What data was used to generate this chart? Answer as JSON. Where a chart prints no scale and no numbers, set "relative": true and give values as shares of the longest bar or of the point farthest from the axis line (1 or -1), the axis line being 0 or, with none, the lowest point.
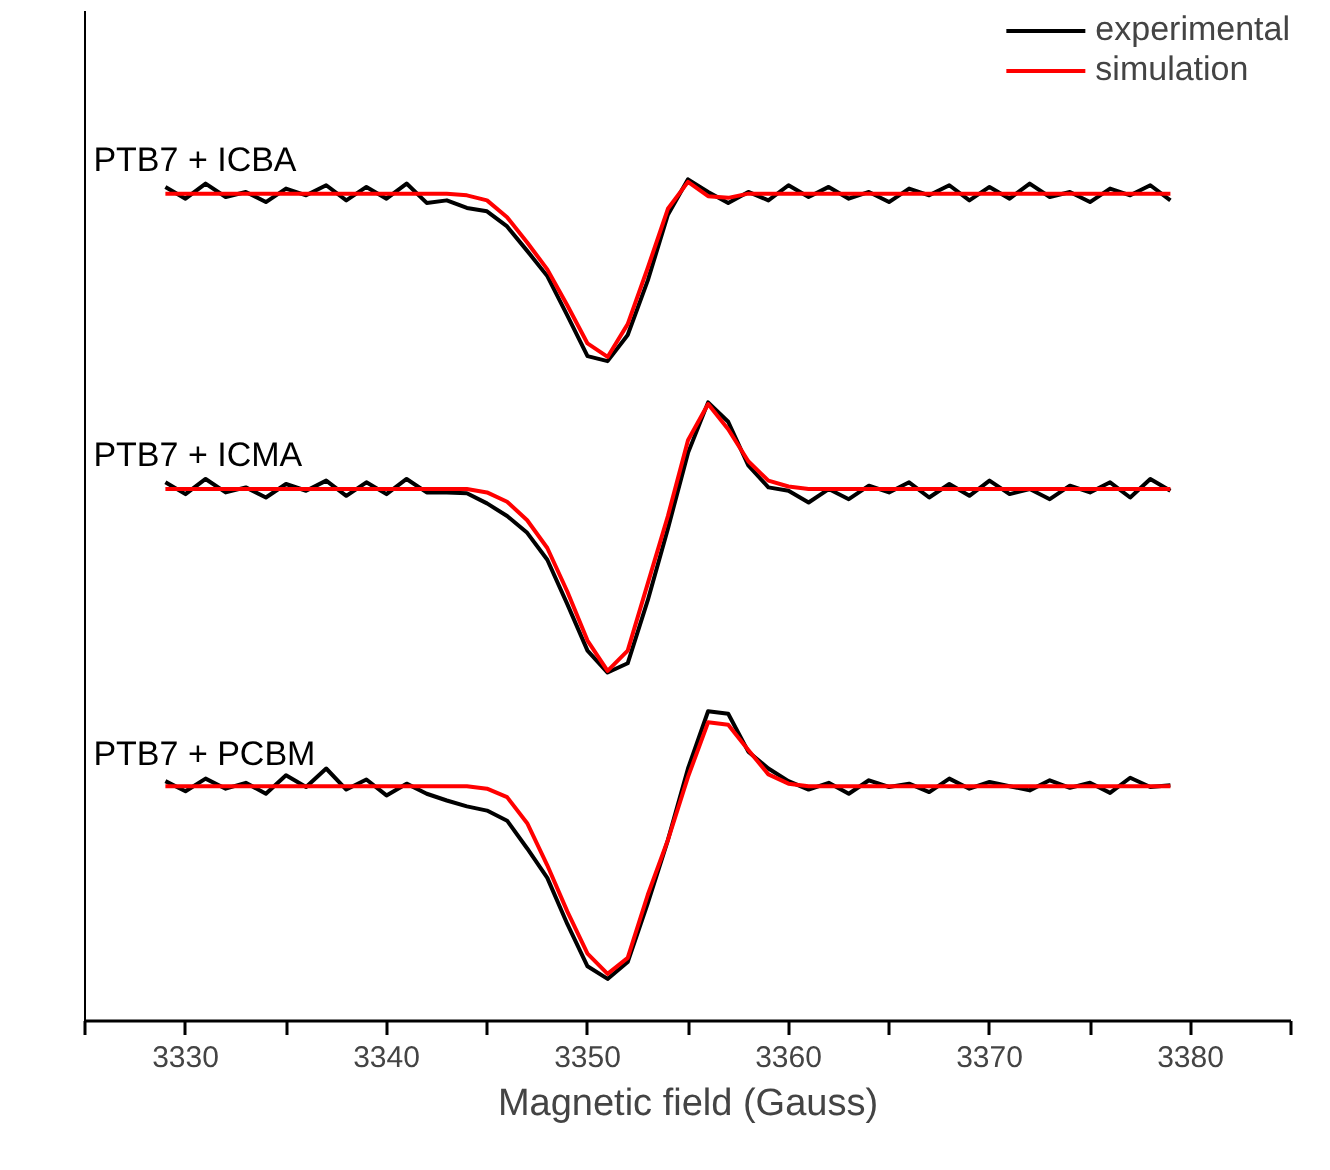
{
  "chart_data": {
    "type": "line",
    "relative": true,
    "xlabel": "Magnetic field (Gauss)",
    "xlim": [
      3325,
      3385
    ],
    "xticks": [
      {
        "value": 3325,
        "label": null
      },
      3330,
      {
        "value": 3335,
        "label": null
      },
      3340,
      {
        "value": 3345,
        "label": null
      },
      3350,
      {
        "value": 3355,
        "label": null
      },
      3360,
      {
        "value": 3365,
        "label": null
      },
      3370,
      {
        "value": 3375,
        "label": null
      },
      3380,
      {
        "value": 3385,
        "label": null
      }
    ],
    "grid": false,
    "legend": "top right",
    "line_style": "solid",
    "marker": "none",
    "x": [
      3329,
      3330,
      3331,
      3332,
      3333,
      3334,
      3335,
      3336,
      3337,
      3338,
      3339,
      3340,
      3341,
      3342,
      3343,
      3344,
      3345,
      3346,
      3347,
      3348,
      3349,
      3350,
      3351,
      3352,
      3353,
      3354,
      3355,
      3356,
      3357,
      3358,
      3359,
      3360,
      3361,
      3362,
      3363,
      3364,
      3365,
      3366,
      3367,
      3368,
      3369,
      3370,
      3371,
      3372,
      3373,
      3374,
      3375,
      3376,
      3377,
      3378,
      3379
    ],
    "series": [
      {
        "name": "experimental",
        "color": "#000000",
        "values": [
          0.991,
          0.977,
          0.995,
          0.979,
          0.985,
          0.973,
          0.989,
          0.981,
          0.993,
          0.975,
          0.991,
          0.977,
          0.995,
          0.972,
          0.975,
          0.966,
          0.962,
          0.944,
          0.915,
          0.885,
          0.838,
          0.79,
          0.784,
          0.815,
          0.88,
          0.958,
          1.0,
          0.985,
          0.972,
          0.985,
          0.975,
          0.993,
          0.979,
          0.991,
          0.977,
          0.985,
          0.973,
          0.989,
          0.981,
          0.993,
          0.975,
          0.991,
          0.977,
          0.995,
          0.979,
          0.985,
          0.973,
          0.989,
          0.981,
          0.993,
          0.975
        ]
      },
      {
        "name": "simulation",
        "color": "#ff0000",
        "values": [
          0.983,
          0.983,
          0.983,
          0.983,
          0.983,
          0.983,
          0.983,
          0.983,
          0.983,
          0.983,
          0.983,
          0.983,
          0.983,
          0.983,
          0.983,
          0.981,
          0.975,
          0.955,
          0.925,
          0.893,
          0.85,
          0.805,
          0.789,
          0.828,
          0.895,
          0.965,
          0.997,
          0.98,
          0.978,
          0.983,
          0.983,
          0.983,
          0.983,
          0.983,
          0.983,
          0.983,
          0.983,
          0.983,
          0.983,
          0.983,
          0.983,
          0.983,
          0.983,
          0.983,
          0.983,
          0.983,
          0.983,
          0.983,
          0.983,
          0.983,
          0.983
        ]
      },
      {
        "color": "#000000",
        "values": [
          0.64,
          0.626,
          0.644,
          0.628,
          0.634,
          0.622,
          0.638,
          0.63,
          0.642,
          0.624,
          0.64,
          0.626,
          0.644,
          0.628,
          0.628,
          0.627,
          0.615,
          0.6,
          0.58,
          0.548,
          0.495,
          0.44,
          0.414,
          0.425,
          0.5,
          0.585,
          0.675,
          0.735,
          0.712,
          0.66,
          0.634,
          0.63,
          0.616,
          0.632,
          0.62,
          0.636,
          0.628,
          0.64,
          0.622,
          0.638,
          0.624,
          0.642,
          0.626,
          0.632,
          0.62,
          0.636,
          0.628,
          0.64,
          0.622,
          0.644,
          0.63
        ]
      },
      {
        "color": "#ff0000",
        "values": [
          0.632,
          0.632,
          0.632,
          0.632,
          0.632,
          0.632,
          0.632,
          0.632,
          0.632,
          0.632,
          0.632,
          0.632,
          0.632,
          0.632,
          0.632,
          0.632,
          0.628,
          0.617,
          0.595,
          0.562,
          0.51,
          0.452,
          0.416,
          0.44,
          0.52,
          0.6,
          0.69,
          0.733,
          0.703,
          0.665,
          0.642,
          0.635,
          0.632,
          0.632,
          0.632,
          0.632,
          0.632,
          0.632,
          0.632,
          0.632,
          0.632,
          0.632,
          0.632,
          0.632,
          0.632,
          0.632,
          0.632,
          0.632,
          0.632,
          0.632,
          0.632
        ]
      },
      {
        "color": "#000000",
        "values": [
          0.285,
          0.273,
          0.288,
          0.276,
          0.283,
          0.27,
          0.292,
          0.278,
          0.3,
          0.275,
          0.287,
          0.268,
          0.282,
          0.27,
          0.262,
          0.255,
          0.25,
          0.238,
          0.205,
          0.17,
          0.115,
          0.065,
          0.05,
          0.07,
          0.14,
          0.215,
          0.3,
          0.368,
          0.365,
          0.32,
          0.3,
          0.285,
          0.275,
          0.283,
          0.27,
          0.286,
          0.278,
          0.282,
          0.272,
          0.288,
          0.276,
          0.284,
          0.279,
          0.274,
          0.286,
          0.277,
          0.283,
          0.271,
          0.289,
          0.278,
          0.28
        ]
      },
      {
        "color": "#ff0000",
        "values": [
          0.279,
          0.279,
          0.279,
          0.279,
          0.279,
          0.279,
          0.279,
          0.279,
          0.279,
          0.279,
          0.279,
          0.279,
          0.279,
          0.279,
          0.279,
          0.279,
          0.276,
          0.266,
          0.235,
          0.185,
          0.13,
          0.08,
          0.056,
          0.075,
          0.15,
          0.215,
          0.29,
          0.355,
          0.352,
          0.322,
          0.293,
          0.282,
          0.279,
          0.279,
          0.279,
          0.279,
          0.279,
          0.279,
          0.279,
          0.279,
          0.279,
          0.279,
          0.279,
          0.279,
          0.279,
          0.279,
          0.279,
          0.279,
          0.279,
          0.279,
          0.279
        ]
      }
    ],
    "annotations": [
      "PTB7 + ICBA",
      "PTB7 + ICMA",
      "PTB7 + PCBM"
    ]
  }
}
